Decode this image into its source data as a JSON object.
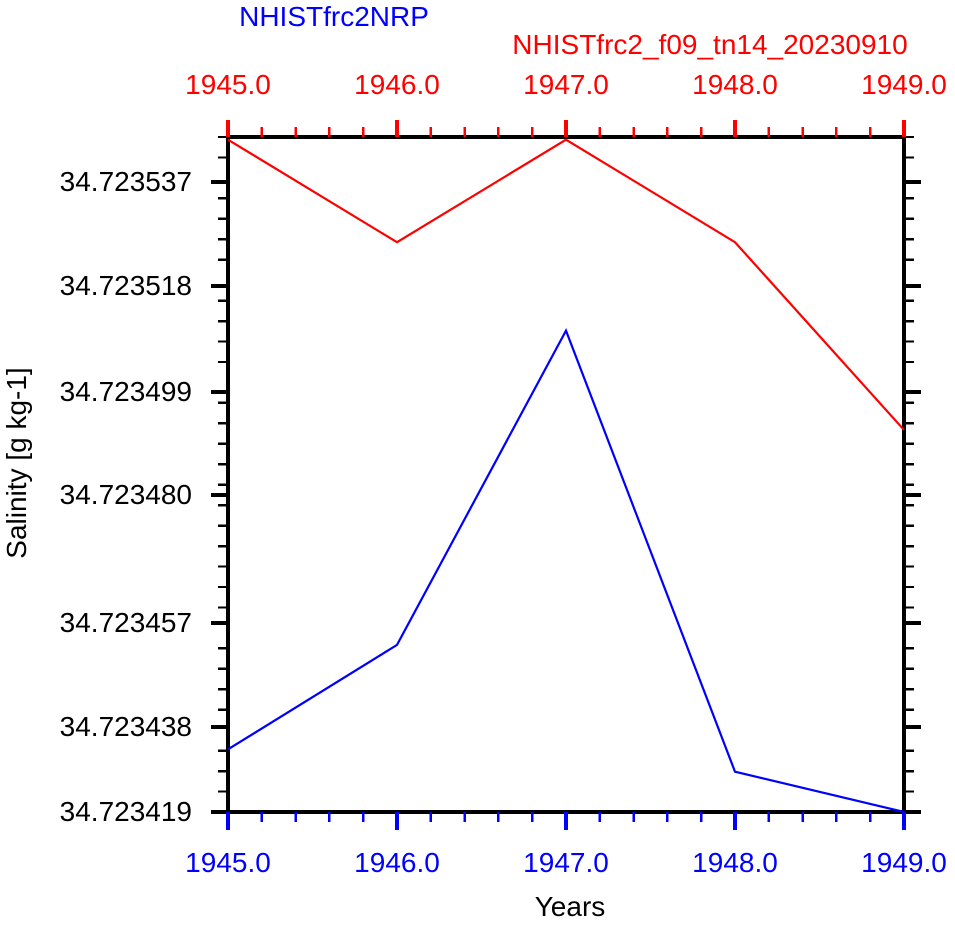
{
  "chart_data": {
    "type": "line",
    "titles": {
      "left_blue": "NHISTfrc2NRP",
      "right_red": "NHISTfrc2_f09_tn14_20230910"
    },
    "xlabel": "Years",
    "ylabel": "Salinity [g kg-1]",
    "x": [
      1945.0,
      1946.0,
      1947.0,
      1948.0,
      1949.0
    ],
    "x_tick_labels": [
      "1945.0",
      "1946.0",
      "1947.0",
      "1948.0",
      "1949.0"
    ],
    "y_tick_labels": [
      "34.723537",
      "34.723518",
      "34.723499",
      "34.723480",
      "34.723457",
      "34.723438",
      "34.723419"
    ],
    "xlim": [
      1945.0,
      1949.0
    ],
    "ylim": [
      34.723419,
      34.7235455
    ],
    "grid": false,
    "legend_position": "none (series identified by colored titles above plot)",
    "series": [
      {
        "name": "NHISTfrc2NRP",
        "color": "#0000ff",
        "values": [
          34.723433,
          34.723453,
          34.72351,
          34.723428,
          34.723419
        ]
      },
      {
        "name": "NHISTfrc2_f09_tn14_20230910",
        "color": "#ff0000",
        "values": [
          34.723545,
          34.723526,
          34.723545,
          34.723526,
          34.723492
        ]
      }
    ],
    "axis_style": {
      "frame_color": "#000000",
      "top_tick_color": "#ff0000",
      "bottom_tick_color": "#0000ff",
      "side_tick_color": "#000000"
    }
  }
}
